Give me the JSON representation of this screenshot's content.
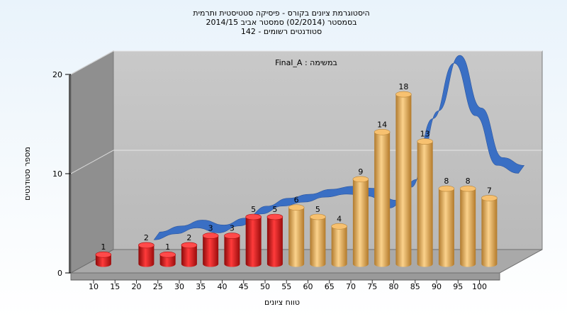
{
  "chart_data": {
    "type": "bar",
    "title_lines": [
      "היסטוגרמת ציונים בקורס - פיסיקה סטטיסטית ותרמית",
      "בסמסטר (02/2014) סמסטר אביב 2014/15",
      "142 - סטודנטים רשומים"
    ],
    "annotation": "Final_A : במשימה",
    "xlabel": "טווח ציונים",
    "ylabel": "מספר סטודנטים",
    "x_tick_labels": [
      "10",
      "15",
      "20",
      "25",
      "30",
      "35",
      "40",
      "45",
      "50",
      "55",
      "60",
      "65",
      "70",
      "75",
      "80",
      "85",
      "90",
      "95",
      "100"
    ],
    "y_tick_labels": [
      "0",
      "10",
      "20"
    ],
    "ylim": [
      0,
      20
    ],
    "categories": [
      "10",
      "20",
      "25",
      "30",
      "35",
      "40",
      "45",
      "50",
      "55",
      "60",
      "65",
      "70",
      "75",
      "80",
      "85",
      "90",
      "95",
      "100"
    ],
    "values": [
      1,
      2,
      1,
      2,
      3,
      3,
      5,
      5,
      6,
      5,
      4,
      9,
      14,
      18,
      13,
      8,
      8,
      7
    ],
    "bar_colors": [
      "red",
      "red",
      "red",
      "red",
      "red",
      "red",
      "red",
      "red",
      "gold",
      "gold",
      "gold",
      "gold",
      "gold",
      "gold",
      "gold",
      "gold",
      "gold",
      "gold"
    ],
    "curve": {
      "type": "line",
      "x": [
        15,
        20,
        25,
        30,
        35,
        40,
        45,
        50,
        55,
        60,
        65,
        70,
        75,
        80,
        85,
        90,
        95,
        100
      ],
      "y": [
        2.0,
        2.6,
        3.2,
        2.7,
        3.4,
        4.6,
        5.4,
        5.8,
        6.3,
        6.6,
        6.4,
        5.2,
        7.3,
        14.2,
        19.8,
        14.5,
        9.5,
        8.7
      ]
    },
    "grid": true,
    "colors": {
      "red": "#e01b1b",
      "gold": "#e8a94e",
      "curve": "#3a6fc4",
      "wall": "#8c8c8c",
      "plane": "#c0c0c0"
    }
  }
}
